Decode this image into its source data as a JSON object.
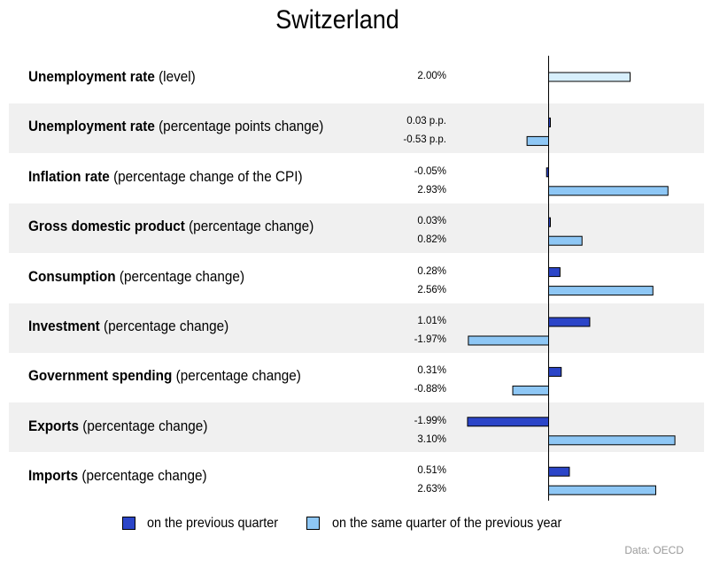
{
  "chart_data": {
    "type": "bar",
    "orientation": "horizontal",
    "title": "Switzerland",
    "source": "Data: OECD",
    "series": [
      {
        "name": "on the previous quarter",
        "color": "#2b45c8"
      },
      {
        "name": "on the same quarter of the previous year",
        "color": "#8ec7f5"
      }
    ],
    "rows": [
      {
        "bold": "Unemployment rate",
        "rest": " (level)",
        "values": [
          {
            "series": 1,
            "value": 2.0,
            "label": "2.00%",
            "color": "#d7effc"
          }
        ]
      },
      {
        "bold": "Unemployment rate",
        "rest": " (percentage points change)",
        "values": [
          {
            "series": 0,
            "value": 0.03,
            "label": "0.03 p.p."
          },
          {
            "series": 1,
            "value": -0.53,
            "label": "-0.53 p.p."
          }
        ]
      },
      {
        "bold": "Inflation rate",
        "rest": " (percentage change of the CPI)",
        "values": [
          {
            "series": 0,
            "value": -0.05,
            "label": "-0.05%"
          },
          {
            "series": 1,
            "value": 2.93,
            "label": "2.93%"
          }
        ]
      },
      {
        "bold": "Gross domestic product",
        "rest": " (percentage change)",
        "values": [
          {
            "series": 0,
            "value": 0.03,
            "label": "0.03%"
          },
          {
            "series": 1,
            "value": 0.82,
            "label": "0.82%"
          }
        ]
      },
      {
        "bold": "Consumption",
        "rest": " (percentage change)",
        "values": [
          {
            "series": 0,
            "value": 0.28,
            "label": "0.28%"
          },
          {
            "series": 1,
            "value": 2.56,
            "label": "2.56%"
          }
        ]
      },
      {
        "bold": "Investment",
        "rest": " (percentage change)",
        "values": [
          {
            "series": 0,
            "value": 1.01,
            "label": "1.01%"
          },
          {
            "series": 1,
            "value": -1.97,
            "label": "-1.97%"
          }
        ]
      },
      {
        "bold": "Government spending",
        "rest": " (percentage change)",
        "values": [
          {
            "series": 0,
            "value": 0.31,
            "label": "0.31%"
          },
          {
            "series": 1,
            "value": -0.88,
            "label": "-0.88%"
          }
        ]
      },
      {
        "bold": "Exports",
        "rest": " (percentage change)",
        "values": [
          {
            "series": 0,
            "value": -1.99,
            "label": "-1.99%"
          },
          {
            "series": 1,
            "value": 3.1,
            "label": "3.10%"
          }
        ]
      },
      {
        "bold": "Imports",
        "rest": " (percentage change)",
        "values": [
          {
            "series": 0,
            "value": 0.51,
            "label": "0.51%"
          },
          {
            "series": 1,
            "value": 2.63,
            "label": "2.63%"
          }
        ]
      }
    ]
  }
}
